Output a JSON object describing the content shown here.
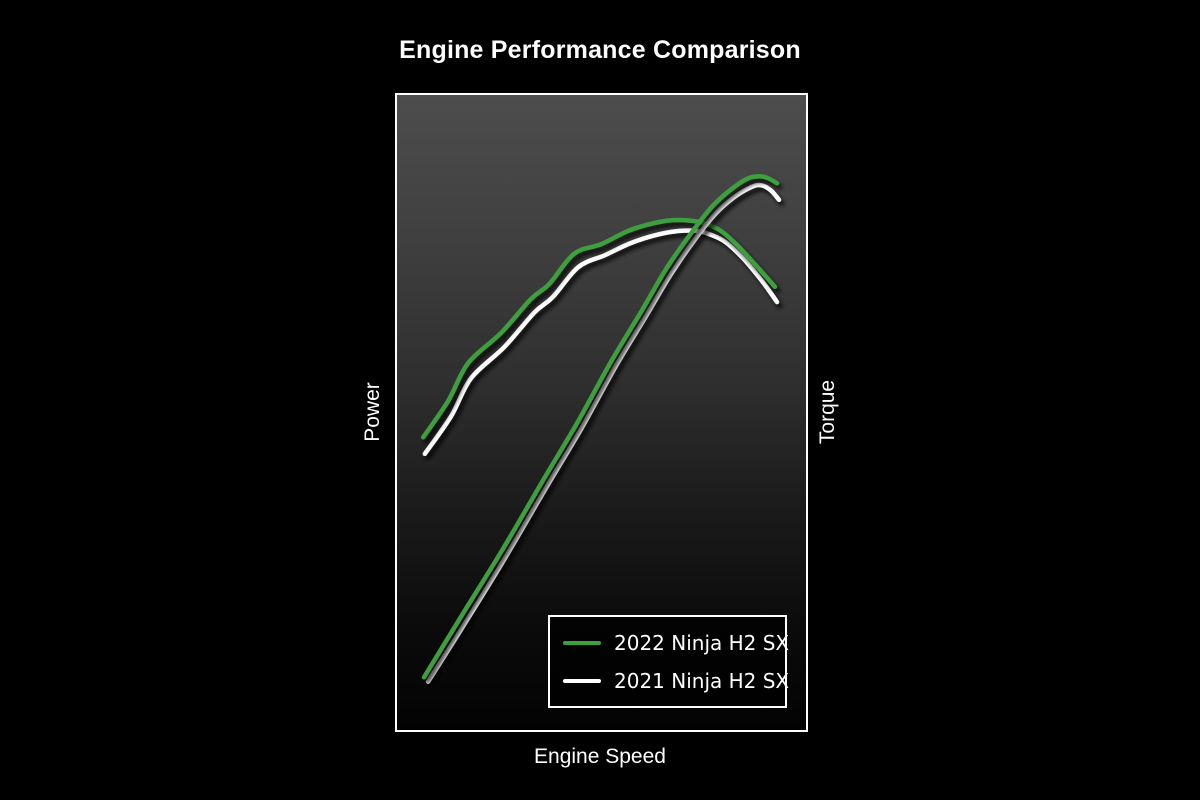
{
  "title": "Engine Performance Comparison",
  "axes": {
    "left": "Power",
    "right": "Torque",
    "bottom": "Engine Speed"
  },
  "legend": {
    "items": [
      {
        "label": "2022 Ninja H2 SX",
        "color": "#3E9F3E"
      },
      {
        "label": "2021 Ninja H2 SX",
        "color": "#FFFFFF"
      }
    ]
  },
  "colors": {
    "page_background": "#000000",
    "plot_border": "#FFFFFF",
    "plot_gradient_top": "#4D4D4D",
    "plot_gradient_bottom": "#030303",
    "text": "#FFFFFF",
    "accent_green": "#3E9F3E"
  },
  "chart_data": {
    "type": "line",
    "title": "Engine Performance Comparison",
    "xlabel": "Engine Speed",
    "ylabel_left": "Power",
    "ylabel_right": "Torque",
    "grid": false,
    "tick_labels": "none (axes are unlabeled dyno-style curves)",
    "legend_position": "lower-right inside plot",
    "coordinate_note": "points are fractional positions in the plot area: x 0=left..1=right (engine speed), y 0=bottom..1=top (power/torque magnitude)",
    "series": [
      {
        "id": "torque-2021",
        "name": "2021 Ninja H2 SX — Torque",
        "color": "#FFFFFF",
        "points": [
          [
            0.068,
            0.435
          ],
          [
            0.132,
            0.494
          ],
          [
            0.181,
            0.554
          ],
          [
            0.262,
            0.603
          ],
          [
            0.335,
            0.657
          ],
          [
            0.381,
            0.682
          ],
          [
            0.443,
            0.729
          ],
          [
            0.509,
            0.748
          ],
          [
            0.572,
            0.767
          ],
          [
            0.636,
            0.78
          ],
          [
            0.69,
            0.786
          ],
          [
            0.733,
            0.786
          ],
          [
            0.763,
            0.781
          ],
          [
            0.802,
            0.769
          ],
          [
            0.846,
            0.743
          ],
          [
            0.883,
            0.715
          ],
          [
            0.912,
            0.69
          ],
          [
            0.929,
            0.674
          ]
        ]
      },
      {
        "id": "torque-2022",
        "name": "2022 Ninja H2 SX — Torque",
        "color": "#3E9F3E",
        "points": [
          [
            0.064,
            0.461
          ],
          [
            0.125,
            0.518
          ],
          [
            0.174,
            0.578
          ],
          [
            0.254,
            0.625
          ],
          [
            0.328,
            0.679
          ],
          [
            0.372,
            0.702
          ],
          [
            0.433,
            0.75
          ],
          [
            0.499,
            0.765
          ],
          [
            0.565,
            0.786
          ],
          [
            0.626,
            0.798
          ],
          [
            0.675,
            0.803
          ],
          [
            0.719,
            0.802
          ],
          [
            0.751,
            0.798
          ],
          [
            0.792,
            0.786
          ],
          [
            0.834,
            0.762
          ],
          [
            0.873,
            0.735
          ],
          [
            0.905,
            0.712
          ],
          [
            0.924,
            0.698
          ]
        ]
      },
      {
        "id": "power-2021",
        "name": "2021 Ninja H2 SX — Power",
        "color": "#FFFFFF",
        "points": [
          [
            0.076,
            0.076
          ],
          [
            0.171,
            0.173
          ],
          [
            0.269,
            0.276
          ],
          [
            0.364,
            0.381
          ],
          [
            0.45,
            0.474
          ],
          [
            0.535,
            0.573
          ],
          [
            0.609,
            0.652
          ],
          [
            0.67,
            0.718
          ],
          [
            0.731,
            0.775
          ],
          [
            0.78,
            0.814
          ],
          [
            0.824,
            0.839
          ],
          [
            0.866,
            0.855
          ],
          [
            0.89,
            0.858
          ],
          [
            0.914,
            0.85
          ],
          [
            0.934,
            0.835
          ]
        ]
      },
      {
        "id": "power-2022",
        "name": "2022 Ninja H2 SX — Power",
        "color": "#3E9F3E",
        "points": [
          [
            0.066,
            0.083
          ],
          [
            0.161,
            0.183
          ],
          [
            0.259,
            0.285
          ],
          [
            0.355,
            0.391
          ],
          [
            0.44,
            0.483
          ],
          [
            0.526,
            0.583
          ],
          [
            0.599,
            0.661
          ],
          [
            0.66,
            0.728
          ],
          [
            0.721,
            0.784
          ],
          [
            0.77,
            0.824
          ],
          [
            0.814,
            0.85
          ],
          [
            0.856,
            0.868
          ],
          [
            0.885,
            0.872
          ],
          [
            0.907,
            0.869
          ],
          [
            0.929,
            0.861
          ]
        ]
      }
    ]
  }
}
